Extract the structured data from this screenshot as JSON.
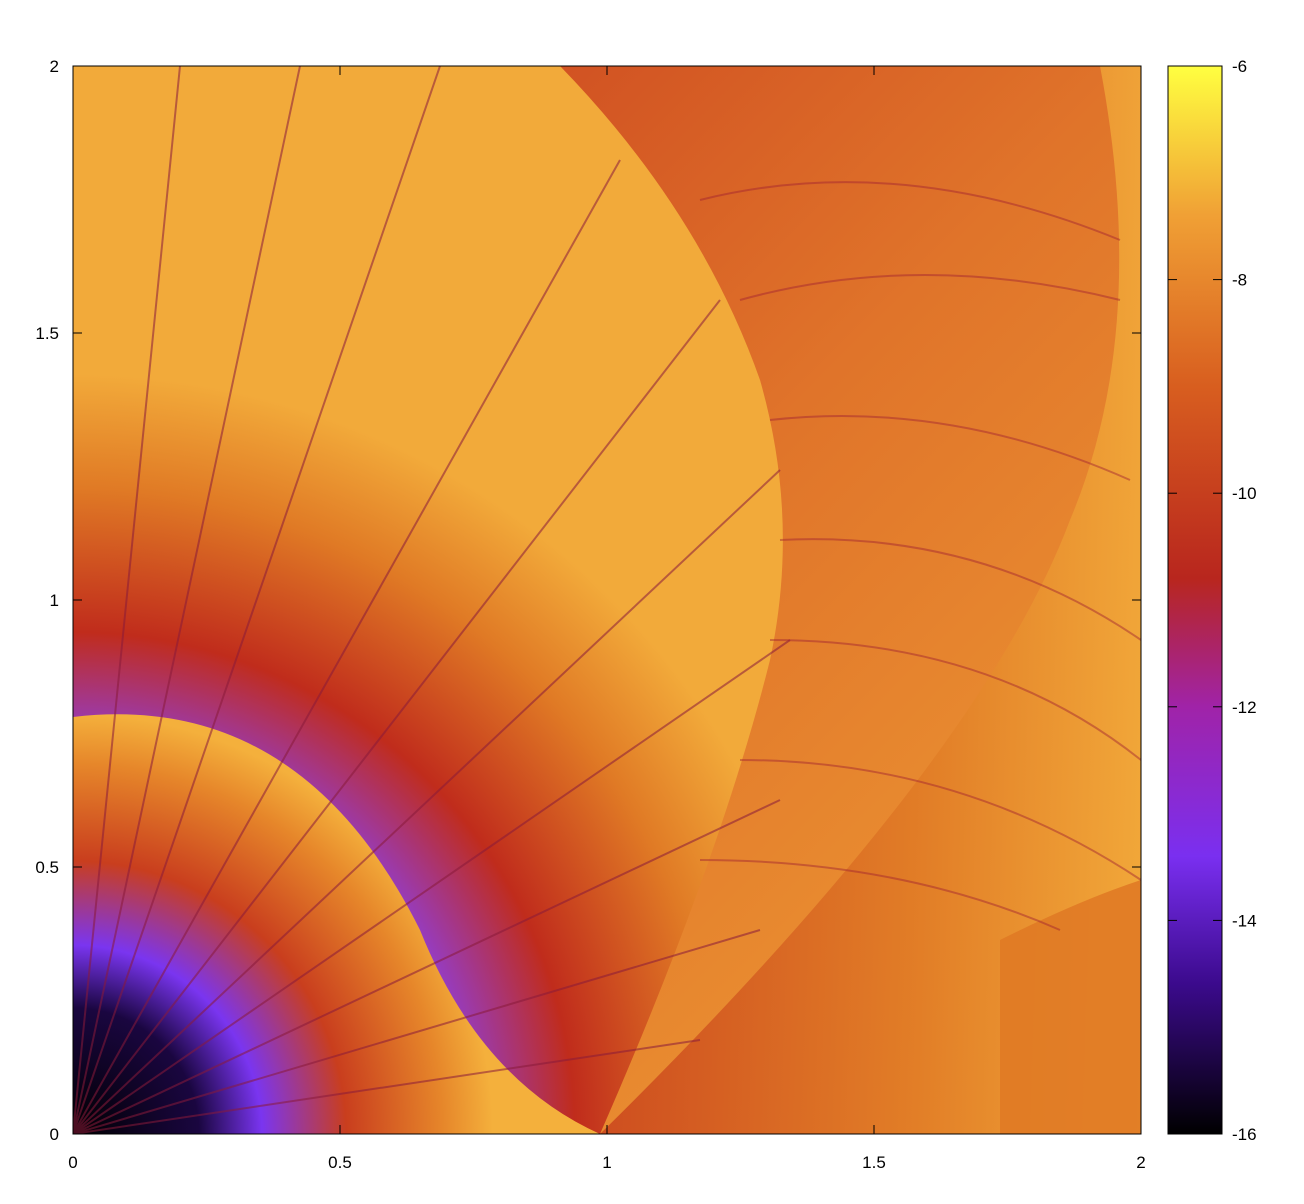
{
  "chart_data": {
    "type": "heatmap",
    "title": "",
    "xlabel": "",
    "ylabel": "",
    "xlim": [
      0,
      2
    ],
    "ylim": [
      0,
      2
    ],
    "xticks": [
      {
        "value": 0,
        "label": "0"
      },
      {
        "value": 0.5,
        "label": "0.5"
      },
      {
        "value": 1,
        "label": "1"
      },
      {
        "value": 1.5,
        "label": "1.5"
      },
      {
        "value": 2,
        "label": "2"
      }
    ],
    "yticks": [
      {
        "value": 0,
        "label": "0"
      },
      {
        "value": 0.5,
        "label": "0.5"
      },
      {
        "value": 1,
        "label": "1"
      },
      {
        "value": 1.5,
        "label": "1.5"
      },
      {
        "value": 2,
        "label": "2"
      }
    ],
    "colorbar": {
      "range": [
        -16,
        -6
      ],
      "ticks": [
        {
          "value": -6,
          "label": "-6"
        },
        {
          "value": -8,
          "label": "-8"
        },
        {
          "value": -10,
          "label": "-10"
        },
        {
          "value": -12,
          "label": "-12"
        },
        {
          "value": -14,
          "label": "-14"
        },
        {
          "value": -16,
          "label": "-16"
        }
      ],
      "palette": [
        "#000000",
        "#3b0a8c",
        "#7a2ff0",
        "#a023a8",
        "#b8261e",
        "#d85e1f",
        "#f0a035",
        "#ffff40"
      ]
    },
    "grid": false
  }
}
